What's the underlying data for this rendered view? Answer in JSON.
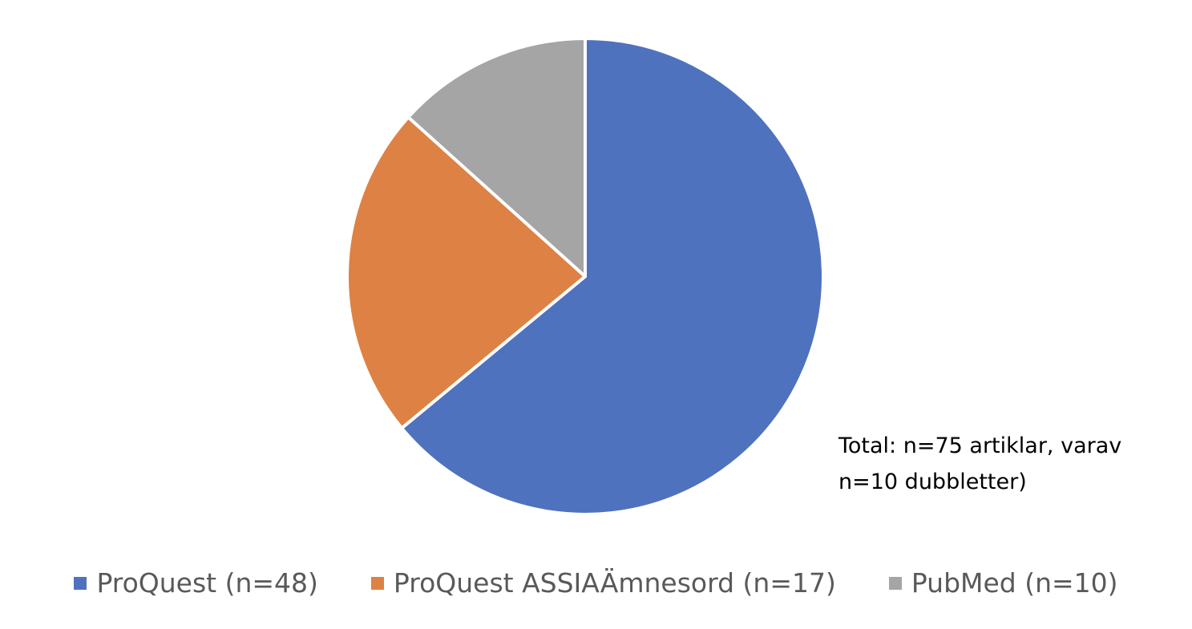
{
  "chart_data": {
    "type": "pie",
    "categories": [
      "ProQuest (n=48)",
      "ProQuest ASSIAÄmnesord (n=17)",
      "PubMed (n=10)"
    ],
    "values": [
      48,
      17,
      10
    ],
    "colors": [
      "#4f72be",
      "#dd8244",
      "#a5a5a5"
    ],
    "annotation": "Total: n=75 artiklar, varav n=10 dubbletter)",
    "legend": "bottom"
  }
}
